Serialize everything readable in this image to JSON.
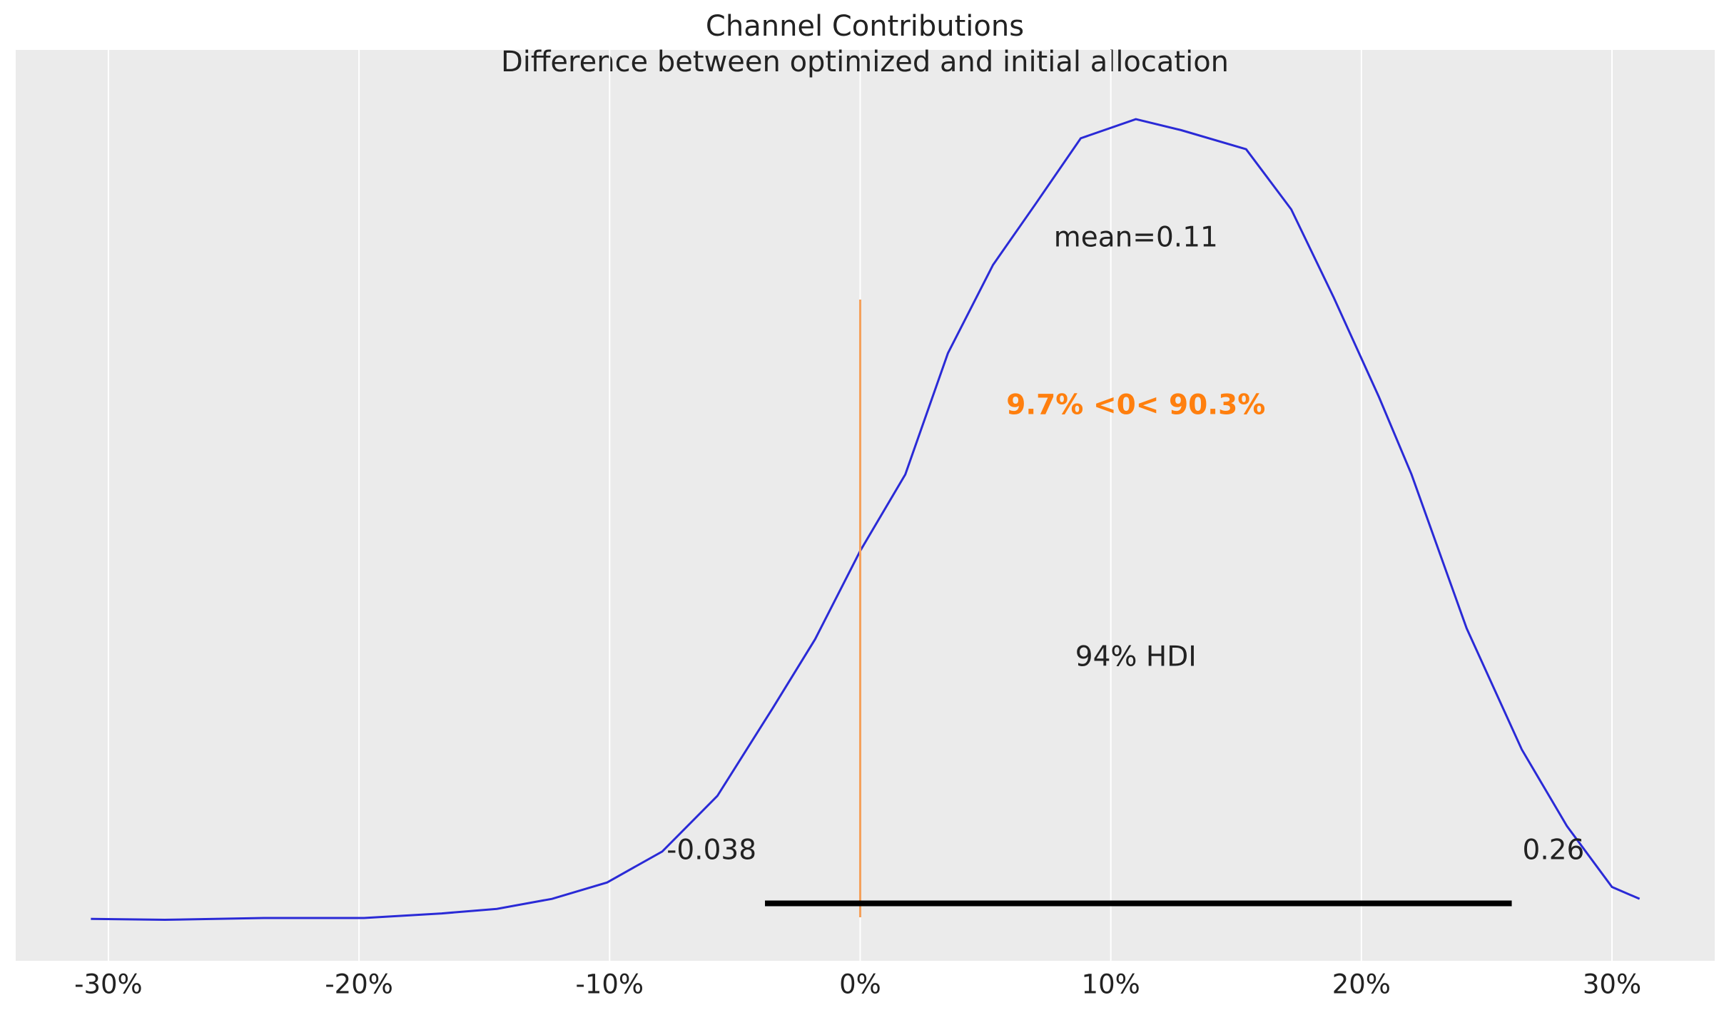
{
  "chart_data": {
    "type": "density",
    "title": "Channel Contributions",
    "subtitle": "Difference between optimized and initial allocation",
    "x": [
      -0.307,
      -0.2775,
      -0.238,
      -0.198,
      -0.167,
      -0.145,
      -0.123,
      -0.101,
      -0.079,
      -0.057,
      -0.035,
      -0.018,
      0,
      0.018,
      0.035,
      0.053,
      0.07,
      0.088,
      0.11,
      0.128,
      0.154,
      0.172,
      0.189,
      0.207,
      0.22,
      0.242,
      0.264,
      0.282,
      0.3,
      0.311
    ],
    "values": [
      0.046,
      0.045,
      0.047,
      0.047,
      0.052,
      0.057,
      0.068,
      0.086,
      0.12,
      0.181,
      0.277,
      0.353,
      0.45,
      0.534,
      0.667,
      0.764,
      0.831,
      0.903,
      0.924,
      0.912,
      0.891,
      0.825,
      0.728,
      0.619,
      0.534,
      0.365,
      0.232,
      0.148,
      0.081,
      0.068
    ],
    "color": "#2a2ad6",
    "hdi": [
      -0.038,
      0.26
    ],
    "hdi_y": 0.063,
    "ref_val": 0,
    "ref_color": "#f5a05a",
    "annotations": {
      "mean": "mean=0.11",
      "ref": "9.7% <0< 90.3%",
      "hdi": "94% HDI"
    },
    "annotation_x": 0.11,
    "xlim": [
      -0.337,
      0.341
    ],
    "ylim": [
      0,
      1
    ],
    "xticks": [
      {
        "value": -0.3,
        "label": "-30%"
      },
      {
        "value": -0.2,
        "label": "-20%"
      },
      {
        "value": -0.1,
        "label": "-10%"
      },
      {
        "value": 0,
        "label": "0%"
      },
      {
        "value": 0.1,
        "label": "10%"
      },
      {
        "value": 0.2,
        "label": "20%"
      },
      {
        "value": 0.3,
        "label": "30%"
      }
    ],
    "grid": true
  }
}
